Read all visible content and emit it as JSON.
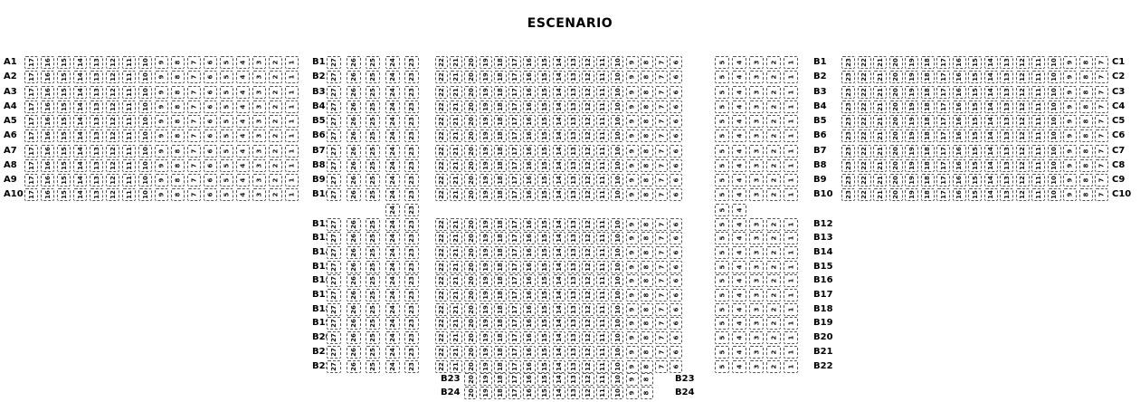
{
  "stage_title": "ESCENARIO",
  "colors": {
    "background": "#ffffff",
    "seat_border": "#555555",
    "text": "#000000"
  },
  "seat_map": {
    "label_columns": [
      {
        "id": "a-left",
        "labels": [
          "A1",
          "A2",
          "A3",
          "A4",
          "A5",
          "A6",
          "A7",
          "A8",
          "A9",
          "A10"
        ]
      },
      {
        "id": "b-upper-left",
        "labels": [
          "B1",
          "B2",
          "B3",
          "B4",
          "B5",
          "B6",
          "B7",
          "B8",
          "B9",
          "B10"
        ]
      },
      {
        "id": "b-upper-right",
        "labels": [
          "B1",
          "B2",
          "B3",
          "B4",
          "B5",
          "B6",
          "B7",
          "B8",
          "B9",
          "B10"
        ]
      },
      {
        "id": "b-lower-left",
        "labels": [
          "B12",
          "B13",
          "B14",
          "B15",
          "B16",
          "B17",
          "B18",
          "B19",
          "B20",
          "B21",
          "B22"
        ]
      },
      {
        "id": "b-lower-right",
        "labels": [
          "B12",
          "B13",
          "B14",
          "B15",
          "B16",
          "B17",
          "B18",
          "B19",
          "B20",
          "B21",
          "B22"
        ]
      },
      {
        "id": "b-bottom-left",
        "labels": [
          "B23",
          "B24"
        ]
      },
      {
        "id": "b-bottom-right",
        "labels": [
          "B23",
          "B24"
        ]
      },
      {
        "id": "c-right",
        "labels": [
          "C1",
          "C2",
          "C3",
          "C4",
          "C5",
          "C6",
          "C7",
          "C8",
          "C9",
          "C10"
        ]
      }
    ],
    "seat_blocks": [
      {
        "id": "a",
        "rows": [
          "A1",
          "A2",
          "A3",
          "A4",
          "A5",
          "A6",
          "A7",
          "A8",
          "A9",
          "A10"
        ],
        "seat_numbers": [
          17,
          16,
          15,
          14,
          13,
          12,
          11,
          10,
          9,
          8,
          7,
          6,
          5,
          4,
          3,
          2,
          1
        ]
      },
      {
        "id": "b-upper-left",
        "rows": [
          "B1",
          "B2",
          "B3",
          "B4",
          "B5",
          "B6",
          "B7",
          "B8",
          "B9",
          "B10"
        ],
        "seat_numbers": [
          27,
          26,
          25,
          24,
          23
        ]
      },
      {
        "id": "b-upper-center",
        "rows": [
          "B1",
          "B2",
          "B3",
          "B4",
          "B5",
          "B6",
          "B7",
          "B8",
          "B9",
          "B10"
        ],
        "seat_numbers": [
          22,
          21,
          20,
          19,
          18,
          17,
          16,
          15,
          14,
          13,
          12,
          11,
          10,
          9,
          8,
          7,
          6
        ]
      },
      {
        "id": "b-upper-right",
        "rows": [
          "B1",
          "B2",
          "B3",
          "B4",
          "B5",
          "B6",
          "B7",
          "B8",
          "B9",
          "B10"
        ],
        "seat_numbers": [
          5,
          4,
          3,
          2,
          1
        ]
      },
      {
        "id": "b11-left",
        "rows": [
          "B11"
        ],
        "seat_numbers": [
          24,
          23
        ]
      },
      {
        "id": "b11-right",
        "rows": [
          "B11"
        ],
        "seat_numbers": [
          5,
          4
        ]
      },
      {
        "id": "b-lower-left",
        "rows": [
          "B12",
          "B13",
          "B14",
          "B15",
          "B16",
          "B17",
          "B18",
          "B19",
          "B20",
          "B21",
          "B22"
        ],
        "seat_numbers": [
          27,
          26,
          25,
          24,
          23
        ]
      },
      {
        "id": "b-lower-center",
        "rows": [
          "B12",
          "B13",
          "B14",
          "B15",
          "B16",
          "B17",
          "B18",
          "B19",
          "B20",
          "B21",
          "B22"
        ],
        "seat_numbers": [
          22,
          21,
          20,
          19,
          18,
          17,
          16,
          15,
          14,
          13,
          12,
          11,
          10,
          9,
          8,
          7,
          6
        ]
      },
      {
        "id": "b-lower-right",
        "rows": [
          "B12",
          "B13",
          "B14",
          "B15",
          "B16",
          "B17",
          "B18",
          "B19",
          "B20",
          "B21",
          "B22"
        ],
        "seat_numbers": [
          5,
          4,
          3,
          2,
          1
        ]
      },
      {
        "id": "b-bottom",
        "rows": [
          "B23",
          "B24"
        ],
        "seat_numbers": [
          20,
          19,
          18,
          17,
          16,
          15,
          14,
          13,
          12,
          11,
          10,
          9,
          8
        ]
      },
      {
        "id": "c",
        "rows": [
          "C1",
          "C2",
          "C3",
          "C4",
          "C5",
          "C6",
          "C7",
          "C8",
          "C9",
          "C10"
        ],
        "seat_numbers": [
          23,
          22,
          21,
          20,
          19,
          18,
          17,
          16,
          15,
          14,
          13,
          12,
          11,
          10,
          9,
          8,
          7
        ]
      }
    ]
  }
}
